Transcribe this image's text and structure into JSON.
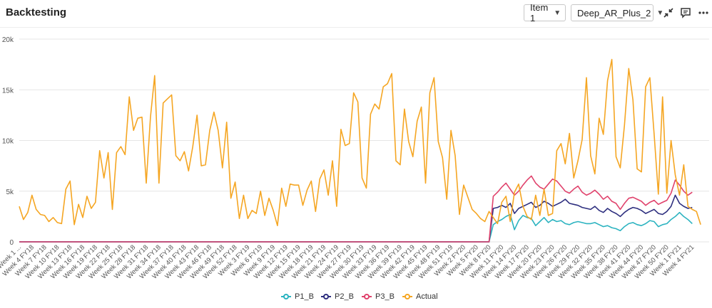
{
  "header": {
    "title": "Backtesting",
    "item_select": "Item 1",
    "model_select": "Deep_AR_Plus_2"
  },
  "colors": {
    "P1_B": "#2bb3c0",
    "P2_B": "#2e2f7f",
    "P3_B": "#e0426c",
    "Actual": "#f5a623",
    "grid": "#e6e6e6"
  },
  "chart_data": {
    "type": "line",
    "title": "",
    "xlabel": "",
    "ylabel": "",
    "ylim": [
      0,
      20000
    ],
    "y_ticks": [
      "0",
      "5k",
      "10k",
      "15k",
      "20k"
    ],
    "x_tick_labels": [
      "Week 1 ...",
      "Week 4 FY18",
      "Week 7 FY18",
      "Week 10 FY18",
      "Week 13 FY18",
      "Week 16 FY18",
      "Week 19 FY18",
      "Week 22 FY18",
      "Week 25 FY18",
      "Week 28 FY18",
      "Week 31 FY18",
      "Week 34 FY18",
      "Week 37 FY18",
      "Week 40 FY18",
      "Week 43 FY18",
      "Week 46 FY18",
      "Week 49 FY18",
      "Week 52 FY18",
      "Week 3 FY19",
      "Week 6 FY19",
      "Week 9 FY19",
      "Week 12 FY19",
      "Week 15 FY19",
      "Week 18 FY19",
      "Week 21 FY19",
      "Week 24 FY19",
      "Week 27 FY19",
      "Week 30 FY19",
      "Week 33 FY19",
      "Week 36 FY19",
      "Week 39 FY19",
      "Week 42 FY19",
      "Week 45 FY19",
      "Week 48 FY19",
      "Week 51 FY19",
      "Week 2 FY20",
      "Week 5 FY20",
      "Week 8 FY20",
      "Week 11 FY20",
      "Week 14 FY20",
      "Week 17 FY20",
      "Week 20 FY20",
      "Week 23 FY20",
      "Week 26 FY20",
      "Week 29 FY20",
      "Week 32 FY20",
      "Week 35 FY20",
      "Week 38 FY20",
      "Week 41 FY20",
      "Week 44 FY20",
      "Week 47 FY20",
      "Week 50 FY20",
      "Week 1 FY21",
      "Week 4 FY21"
    ],
    "x_count": 164,
    "forecast_start_index": 112,
    "series": [
      {
        "name": "P1_B",
        "color": "#2bb3c0",
        "values": [
          0,
          0,
          0,
          0,
          0,
          0,
          0,
          0,
          0,
          0,
          0,
          0,
          0,
          0,
          0,
          0,
          0,
          0,
          0,
          0,
          0,
          0,
          0,
          0,
          0,
          0,
          0,
          0,
          0,
          0,
          0,
          0,
          0,
          0,
          0,
          0,
          0,
          0,
          0,
          0,
          0,
          0,
          0,
          0,
          0,
          0,
          0,
          0,
          0,
          0,
          0,
          0,
          0,
          0,
          0,
          0,
          0,
          0,
          0,
          0,
          0,
          0,
          0,
          0,
          0,
          0,
          0,
          0,
          0,
          0,
          0,
          0,
          0,
          0,
          0,
          0,
          0,
          0,
          0,
          0,
          0,
          0,
          0,
          0,
          0,
          0,
          0,
          0,
          0,
          0,
          0,
          0,
          0,
          0,
          0,
          0,
          0,
          0,
          0,
          0,
          0,
          0,
          0,
          0,
          0,
          0,
          0,
          0,
          0,
          0,
          0,
          0,
          1700,
          2000,
          2200,
          2500,
          2700,
          1200,
          2100,
          2600,
          2400,
          2300,
          1600,
          2000,
          2400,
          1900,
          2200,
          2000,
          2100,
          1800,
          1700,
          1900,
          2000,
          1900,
          1800,
          1800,
          1900,
          1700,
          1500,
          1600,
          1400,
          1300,
          1100,
          1500,
          1800,
          1900,
          1700,
          1600,
          1800,
          2100,
          2000,
          1500,
          1700,
          1800,
          2200,
          2500,
          2900,
          2500,
          2200,
          1800
        ]
      },
      {
        "name": "P2_B",
        "color": "#2e2f7f",
        "values": [
          0,
          0,
          0,
          0,
          0,
          0,
          0,
          0,
          0,
          0,
          0,
          0,
          0,
          0,
          0,
          0,
          0,
          0,
          0,
          0,
          0,
          0,
          0,
          0,
          0,
          0,
          0,
          0,
          0,
          0,
          0,
          0,
          0,
          0,
          0,
          0,
          0,
          0,
          0,
          0,
          0,
          0,
          0,
          0,
          0,
          0,
          0,
          0,
          0,
          0,
          0,
          0,
          0,
          0,
          0,
          0,
          0,
          0,
          0,
          0,
          0,
          0,
          0,
          0,
          0,
          0,
          0,
          0,
          0,
          0,
          0,
          0,
          0,
          0,
          0,
          0,
          0,
          0,
          0,
          0,
          0,
          0,
          0,
          0,
          0,
          0,
          0,
          0,
          0,
          0,
          0,
          0,
          0,
          0,
          0,
          0,
          0,
          0,
          0,
          0,
          0,
          0,
          0,
          0,
          0,
          0,
          0,
          0,
          0,
          0,
          0,
          0,
          3300,
          3400,
          3600,
          3400,
          3800,
          2800,
          3300,
          3500,
          3700,
          3900,
          3400,
          3600,
          4000,
          3800,
          3500,
          3700,
          3900,
          4200,
          3800,
          3700,
          3600,
          3400,
          3300,
          3200,
          3500,
          3100,
          2900,
          3300,
          3000,
          2800,
          2500,
          2900,
          3200,
          3400,
          3300,
          3100,
          2800,
          3000,
          3200,
          2800,
          2700,
          3000,
          3500,
          4600,
          3800,
          3500,
          3300,
          3400
        ]
      },
      {
        "name": "P3_B",
        "color": "#e0426c",
        "values": [
          0,
          0,
          0,
          0,
          0,
          0,
          0,
          0,
          0,
          0,
          0,
          0,
          0,
          0,
          0,
          0,
          0,
          0,
          0,
          0,
          0,
          0,
          0,
          0,
          0,
          0,
          0,
          0,
          0,
          0,
          0,
          0,
          0,
          0,
          0,
          0,
          0,
          0,
          0,
          0,
          0,
          0,
          0,
          0,
          0,
          0,
          0,
          0,
          0,
          0,
          0,
          0,
          0,
          0,
          0,
          0,
          0,
          0,
          0,
          0,
          0,
          0,
          0,
          0,
          0,
          0,
          0,
          0,
          0,
          0,
          0,
          0,
          0,
          0,
          0,
          0,
          0,
          0,
          0,
          0,
          0,
          0,
          0,
          0,
          0,
          0,
          0,
          0,
          0,
          0,
          0,
          0,
          0,
          0,
          0,
          0,
          0,
          0,
          0,
          0,
          0,
          0,
          0,
          0,
          0,
          0,
          0,
          0,
          0,
          0,
          0,
          0,
          4500,
          4900,
          5400,
          5800,
          5200,
          4600,
          5000,
          5600,
          6100,
          6500,
          5800,
          5400,
          5200,
          5700,
          6200,
          6000,
          5500,
          5000,
          4800,
          5200,
          5500,
          4900,
          4600,
          4800,
          5100,
          4700,
          4200,
          4500,
          4000,
          3800,
          3200,
          3800,
          4300,
          4400,
          4200,
          4000,
          3600,
          3900,
          4100,
          3700,
          3900,
          4100,
          4800,
          6100,
          5600,
          5000,
          4600,
          4900
        ]
      },
      {
        "name": "Actual",
        "color": "#f5a623",
        "values": [
          3500,
          2200,
          2900,
          4600,
          3200,
          2700,
          2600,
          2000,
          2400,
          1900,
          1800,
          5200,
          6000,
          1700,
          3700,
          2400,
          4500,
          3300,
          3900,
          9000,
          6300,
          8800,
          3200,
          8800,
          9400,
          8600,
          14300,
          11000,
          12200,
          12300,
          5800,
          12300,
          16400,
          5800,
          13700,
          14100,
          14500,
          8500,
          8000,
          8900,
          7000,
          9400,
          12500,
          7500,
          7600,
          11000,
          12800,
          11000,
          7300,
          11800,
          4300,
          5900,
          2300,
          4600,
          2300,
          3100,
          2800,
          5000,
          2600,
          4300,
          3100,
          1600,
          5300,
          3500,
          5700,
          5600,
          5600,
          3600,
          5100,
          6000,
          3000,
          6200,
          7100,
          4600,
          8000,
          3500,
          11100,
          9500,
          9700,
          14700,
          13800,
          6300,
          5300,
          12600,
          13600,
          13100,
          15300,
          15600,
          16600,
          8000,
          7600,
          13100,
          9900,
          8400,
          11900,
          13300,
          5800,
          14700,
          16200,
          9900,
          8300,
          4200,
          11000,
          8500,
          2700,
          5600,
          4400,
          3200,
          2800,
          2300,
          2000,
          3000,
          2400,
          1800,
          3900,
          4500,
          2000,
          4900,
          5700,
          3500,
          2500,
          2200,
          4600,
          2600,
          5200,
          2600,
          2800,
          9000,
          9700,
          7700,
          10700,
          6300,
          8000,
          10100,
          16200,
          8500,
          6700,
          12200,
          10600,
          15900,
          18000,
          8400,
          7300,
          11500,
          17100,
          14000,
          7200,
          6900,
          15300,
          16200,
          10600,
          4700,
          14300,
          4800,
          10000,
          6600,
          4600,
          7600,
          3500,
          3200,
          3000,
          1700
        ]
      }
    ]
  },
  "icons": {
    "collapse": "collapse-icon",
    "comment": "comment-icon",
    "more": "more-icon"
  }
}
